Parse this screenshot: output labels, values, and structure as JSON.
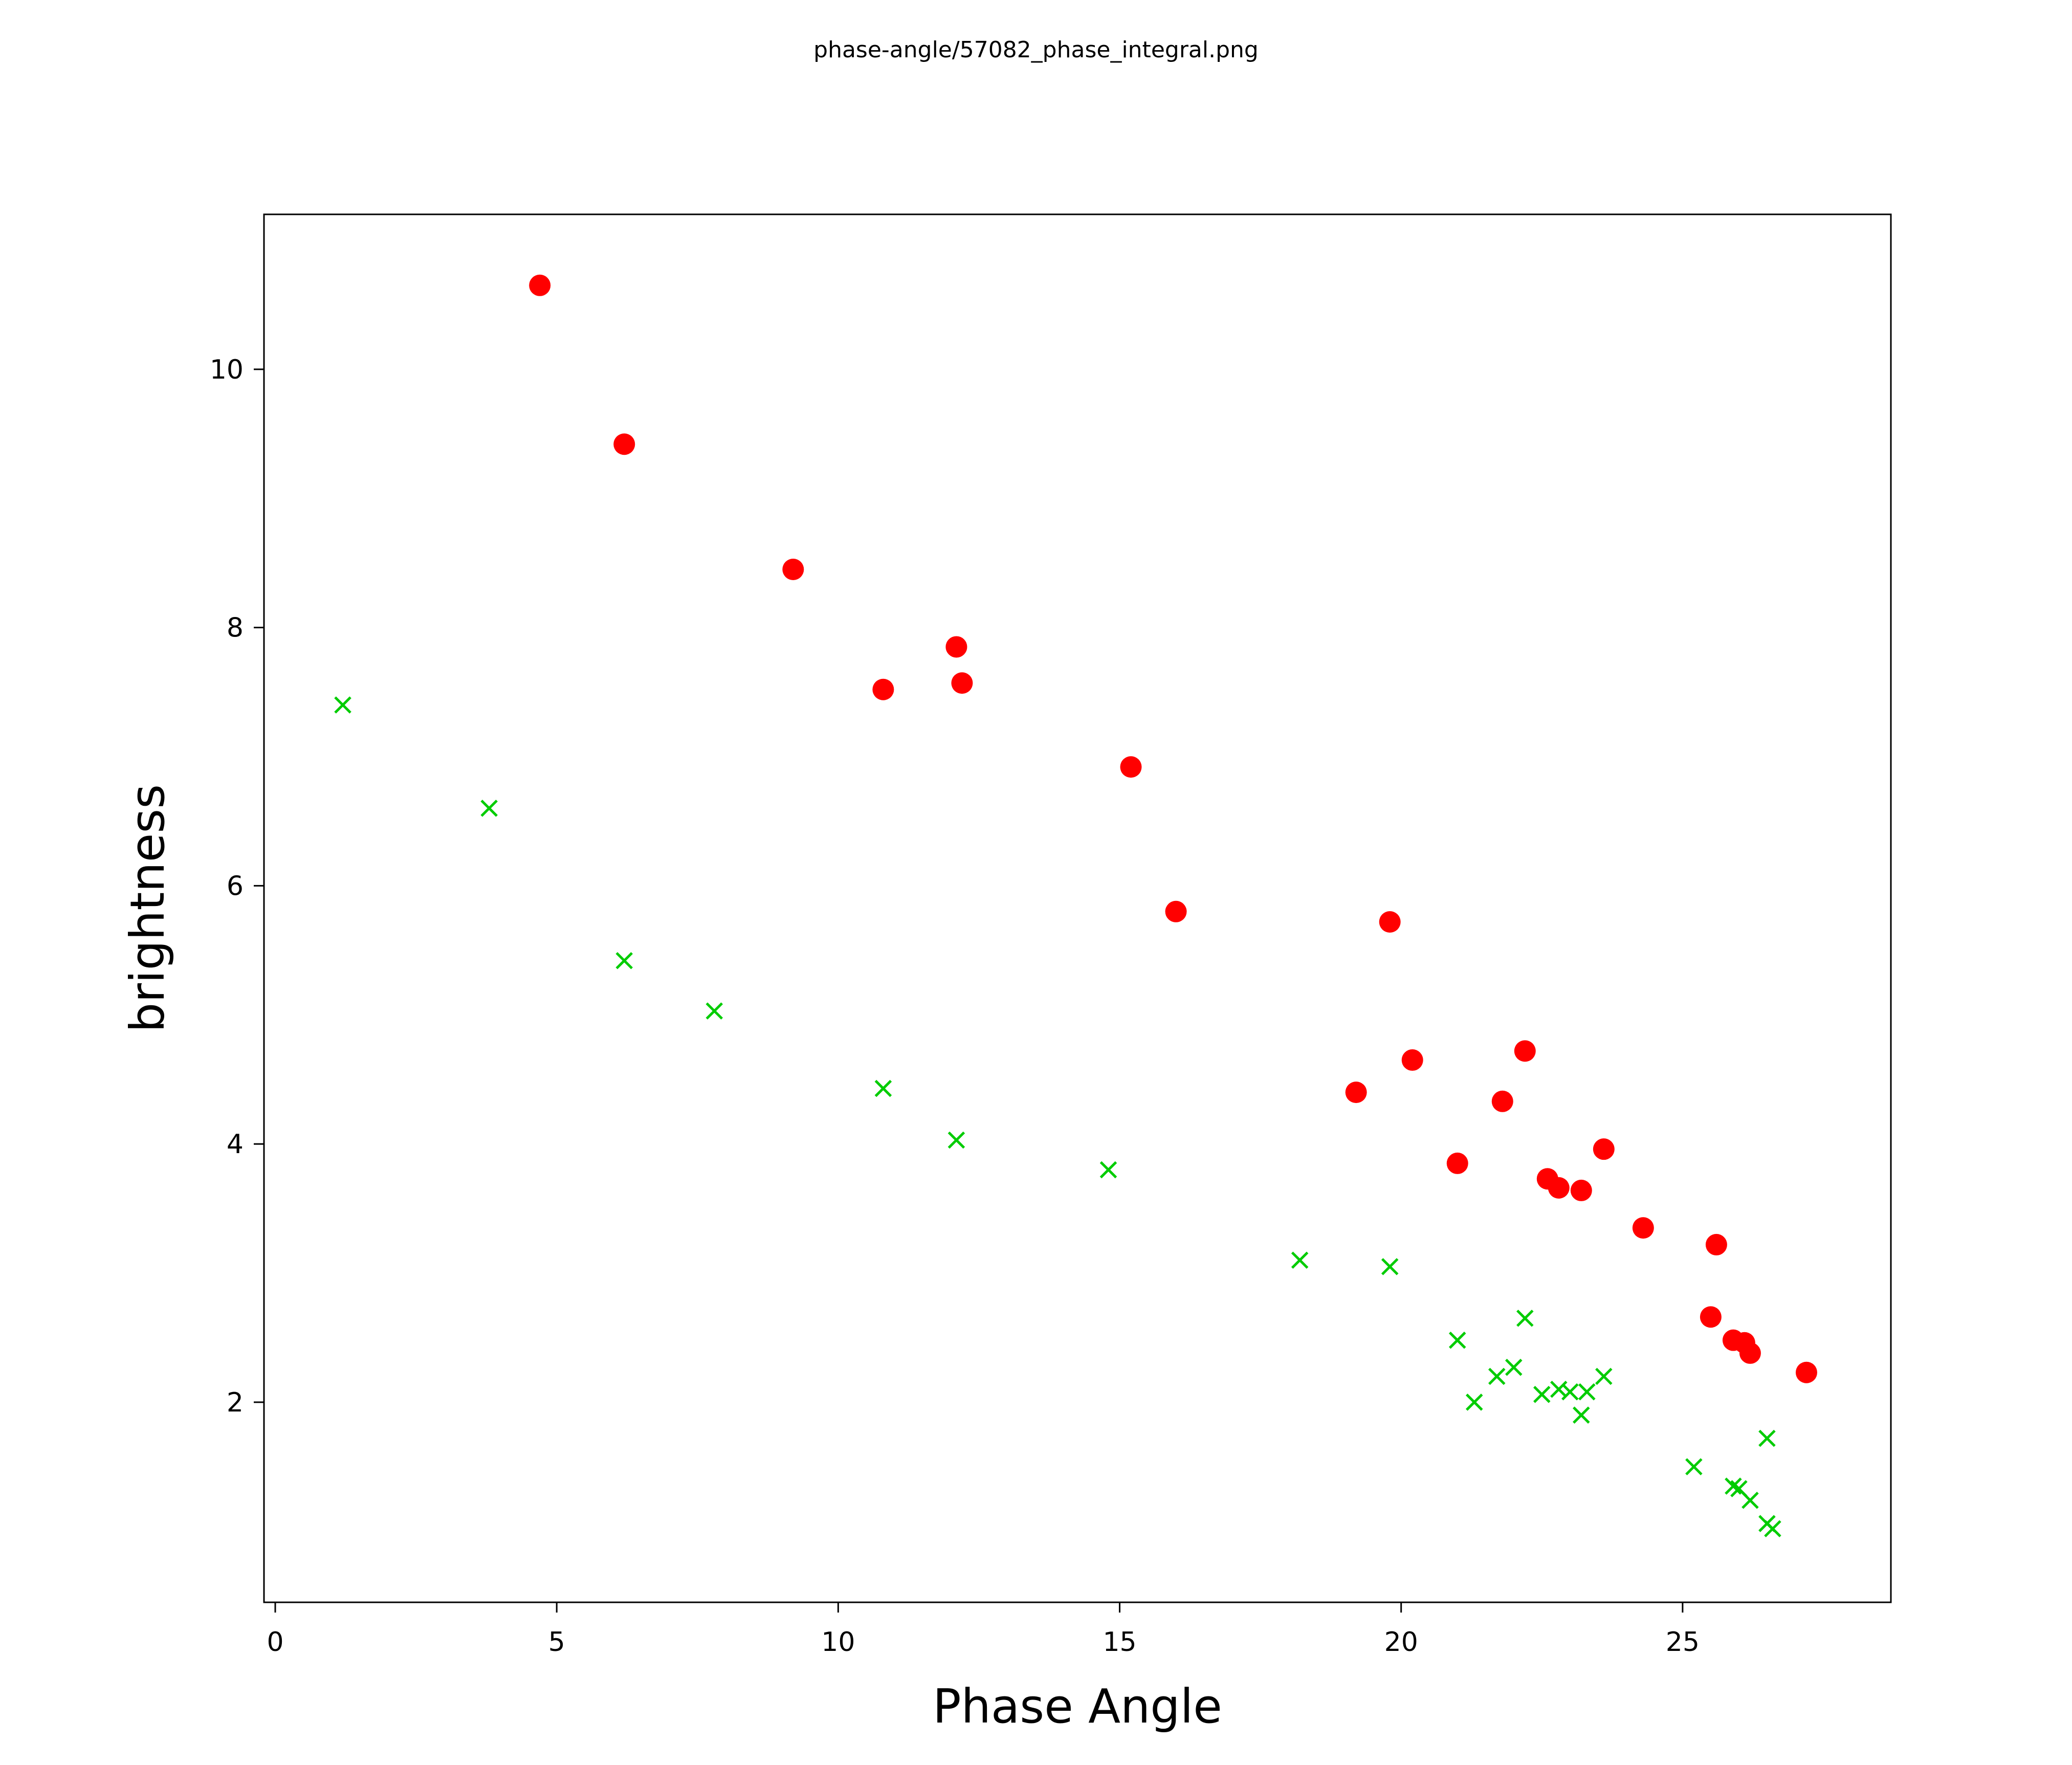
{
  "title": "phase-angle/57082_phase_integral.png",
  "chart_data": {
    "type": "scatter",
    "title": "phase-angle/57082_phase_integral.png",
    "xlabel": "Phase Angle",
    "ylabel": "brightness",
    "xlim": [
      -0.2,
      28.7
    ],
    "ylim": [
      0.45,
      11.2
    ],
    "x_ticks": [
      0,
      5,
      10,
      15,
      20,
      25
    ],
    "y_ticks": [
      2,
      4,
      6,
      8,
      10
    ],
    "grid": false,
    "legend": "none",
    "series": [
      {
        "name": "red-circles",
        "marker": "circle",
        "color": "#ff0000",
        "points": [
          [
            4.7,
            10.65
          ],
          [
            6.2,
            9.42
          ],
          [
            9.2,
            8.45
          ],
          [
            12.1,
            7.85
          ],
          [
            10.8,
            7.52
          ],
          [
            12.2,
            7.57
          ],
          [
            15.2,
            6.92
          ],
          [
            16.0,
            5.8
          ],
          [
            19.8,
            5.72
          ],
          [
            19.2,
            4.4
          ],
          [
            20.2,
            4.65
          ],
          [
            22.2,
            4.72
          ],
          [
            21.8,
            4.33
          ],
          [
            21.0,
            3.85
          ],
          [
            22.6,
            3.73
          ],
          [
            22.8,
            3.66
          ],
          [
            23.2,
            3.64
          ],
          [
            23.6,
            3.96
          ],
          [
            24.3,
            3.35
          ],
          [
            25.6,
            3.22
          ],
          [
            25.5,
            2.66
          ],
          [
            25.9,
            2.48
          ],
          [
            26.1,
            2.46
          ],
          [
            26.2,
            2.38
          ],
          [
            27.2,
            2.23
          ]
        ]
      },
      {
        "name": "green-crosses",
        "marker": "x",
        "color": "#00cc00",
        "points": [
          [
            1.2,
            7.4
          ],
          [
            3.8,
            6.6
          ],
          [
            6.2,
            5.42
          ],
          [
            7.8,
            5.03
          ],
          [
            10.8,
            4.43
          ],
          [
            12.1,
            4.03
          ],
          [
            14.8,
            3.8
          ],
          [
            18.2,
            3.1
          ],
          [
            19.8,
            3.05
          ],
          [
            21.0,
            2.48
          ],
          [
            22.2,
            2.65
          ],
          [
            21.3,
            2.0
          ],
          [
            21.7,
            2.2
          ],
          [
            22.0,
            2.27
          ],
          [
            22.5,
            2.06
          ],
          [
            22.8,
            2.1
          ],
          [
            23.0,
            2.08
          ],
          [
            23.2,
            1.9
          ],
          [
            23.3,
            2.08
          ],
          [
            23.6,
            2.2
          ],
          [
            25.2,
            1.5
          ],
          [
            25.9,
            1.35
          ],
          [
            26.0,
            1.33
          ],
          [
            26.2,
            1.24
          ],
          [
            26.5,
            1.72
          ],
          [
            26.5,
            1.06
          ],
          [
            26.6,
            1.02
          ]
        ]
      }
    ]
  }
}
